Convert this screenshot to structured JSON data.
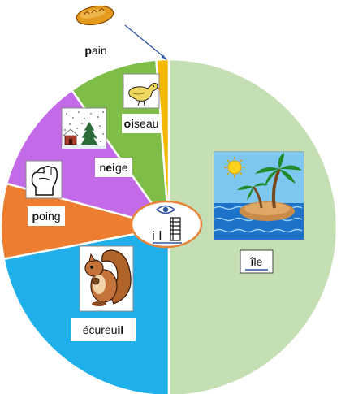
{
  "chart_data": {
    "type": "pie",
    "title": "",
    "categories": [
      "île",
      "écureuil",
      "poing",
      "neige",
      "oiseau",
      "pain"
    ],
    "values": [
      50.0,
      22.0,
      7.2,
      11.0,
      8.6,
      1.2
    ],
    "colors": [
      "#c5dfb4",
      "#1fb0ec",
      "#ed7d31",
      "#c36ae8",
      "#7fbd49",
      "#f5b800"
    ],
    "words": [
      {
        "pre": "",
        "hl": "î",
        "post": "le"
      },
      {
        "pre": "écureu",
        "hl": "il",
        "post": ""
      },
      {
        "pre": "",
        "hl": "p",
        "post": "oing"
      },
      {
        "pre": "n",
        "hl": "ei",
        "post": "ge"
      },
      {
        "pre": "",
        "hl": "oi",
        "post": "seau"
      },
      {
        "pre": "",
        "hl": "p",
        "post": "ain"
      }
    ],
    "icons": [
      "island-icon",
      "squirrel-icon",
      "fist-icon",
      "snow-house-icon",
      "bird-icon",
      "bread-icon"
    ],
    "center_letters": "i l",
    "center_icon": "eye-icon",
    "legend": "none"
  }
}
